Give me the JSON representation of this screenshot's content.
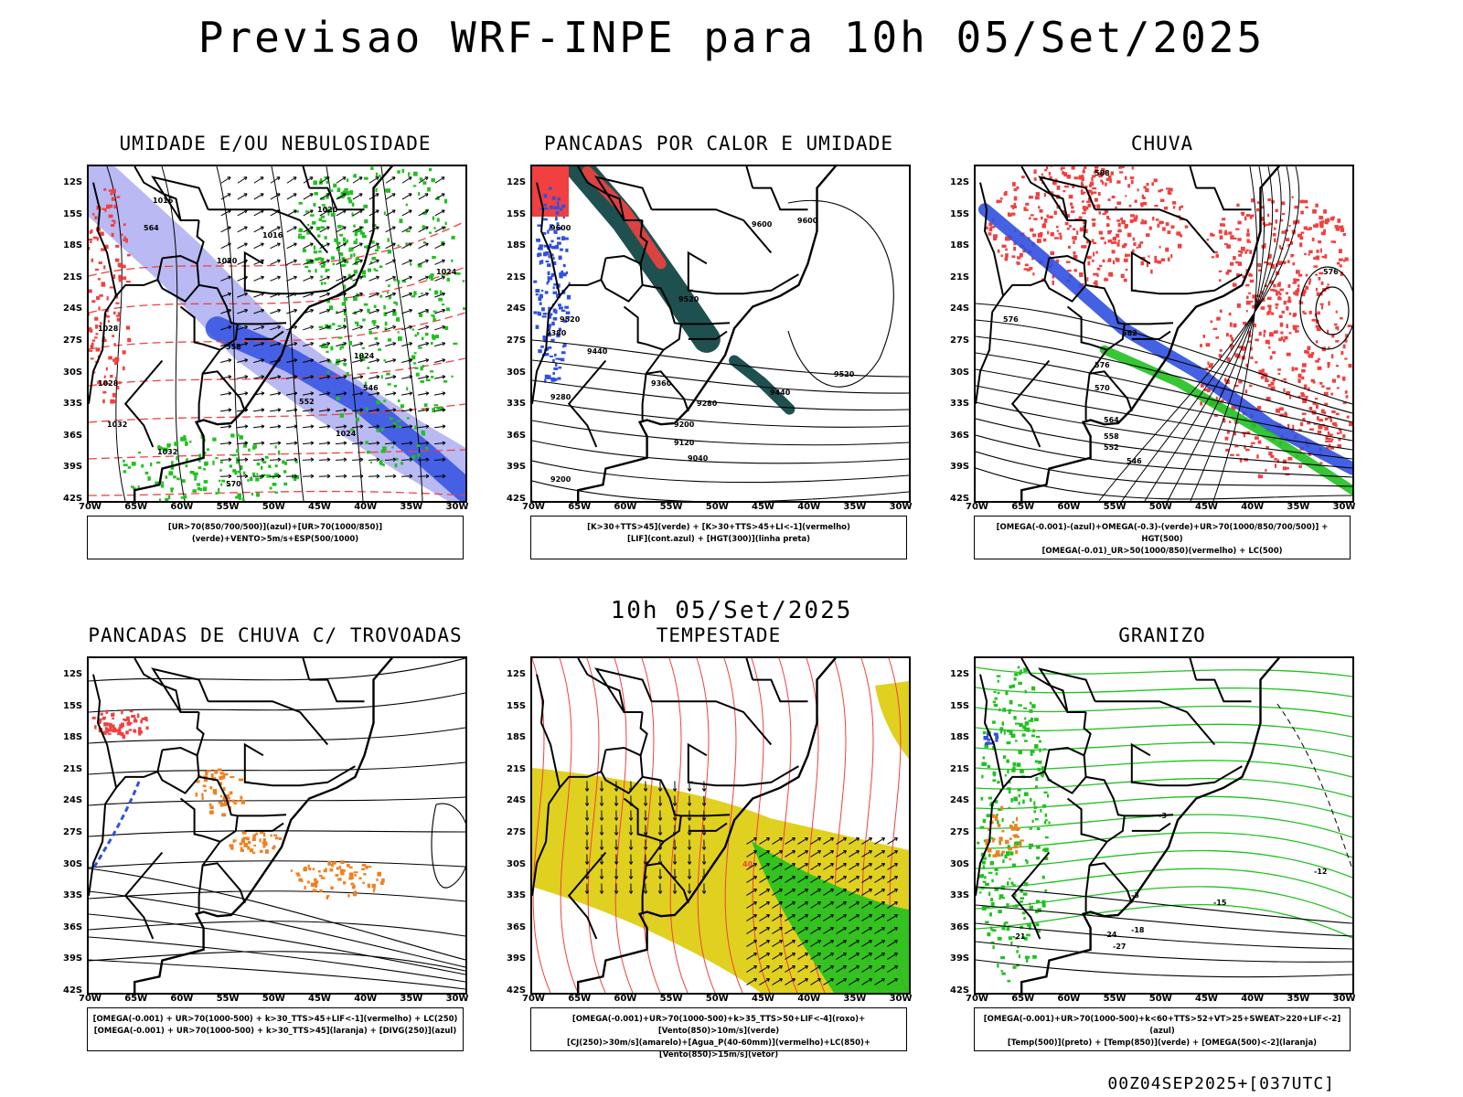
{
  "title": "Previsao WRF-INPE  para 10h 05/Set/2025",
  "mid_title": "10h 05/Set/2025",
  "footer": "00Z04SEP2025+[037UTC]",
  "lat_labels": [
    "12S",
    "15S",
    "18S",
    "21S",
    "24S",
    "27S",
    "30S",
    "33S",
    "36S",
    "39S",
    "42S"
  ],
  "lon_labels": [
    "70W",
    "65W",
    "60W",
    "55W",
    "50W",
    "45W",
    "40W",
    "35W",
    "30W"
  ],
  "colors": {
    "blue": "#3050e0",
    "light_blue": "#a8a8f0",
    "green": "#20c020",
    "red": "#f04040",
    "dark_teal": "#1f5050",
    "orange": "#f08020",
    "yellow": "#e0d020"
  },
  "panels": [
    {
      "title": "UMIDADE E/OU NEBULOSIDADE",
      "legend": [
        "[UR>70(850/700/500)](azul)+[UR>70(1000/850)](verde)+VENTO>5m/s+ESP(500/1000)"
      ],
      "contour_labels": [
        "1016",
        "1016",
        "1020",
        "1020",
        "1024",
        "1024",
        "1024",
        "1028",
        "1028",
        "1032",
        "1032",
        "570",
        "564",
        "558",
        "552",
        "546"
      ]
    },
    {
      "title": "PANCADAS POR CALOR E UMIDADE",
      "legend": [
        "[K>30+TTS>45](verde) + [K>30+TTS>45+LI<-1](vermelho)",
        "[LIF](cont.azul) + [HGT(300)](linha preta)"
      ],
      "contour_labels": [
        "9600",
        "9600",
        "9600",
        "9520",
        "9520",
        "9520",
        "9440",
        "9440",
        "9380",
        "9360",
        "9280",
        "9280",
        "9200",
        "9200",
        "9120",
        "9040"
      ]
    },
    {
      "title": "CHUVA",
      "legend": [
        "[OMEGA(-0.001)-(azul)+OMEGA(-0.3)-(verde)+UR>70(1000/850/700/500)] + HGT(500)",
        "[OMEGA(-0.01)_UR>50(1000/850)(vermelho) + LC(500)"
      ],
      "contour_labels": [
        "588",
        "582",
        "576",
        "576",
        "570",
        "564",
        "558",
        "552",
        "546",
        "576"
      ]
    },
    {
      "title": "PANCADAS DE CHUVA C/ TROVOADAS",
      "legend": [
        "[OMEGA(-0.001) + UR>70(1000-500) + k>30_TTS>45+LIF<-1](vermelho) + LC(250)",
        "[OMEGA(-0.001) + UR>70(1000-500) + k>30_TTS>45](laranja) + [DIVG(250)](azul)"
      ],
      "contour_labels": []
    },
    {
      "title": "TEMPESTADE",
      "legend": [
        "[OMEGA(-0.001)+UR>70(1000-500)+k>35_TTS>50+LIF<-4](roxo)+[Vento(850)>10m/s](verde)",
        "[CJ(250)>30m/s](amarelo)+[Agua_P(40-60mm)](vermelho)+LC(850)+[Vento(850)>15m/s](vetor)"
      ],
      "contour_labels": [
        "40"
      ]
    },
    {
      "title": "GRANIZO",
      "legend": [
        "[OMEGA(-0.001)+UR>70(1000-500)+k<60+TTS>52+VT>25+SWEAT>220+LIF<-2](azul)",
        "[Temp(500)](preto) + [Temp(850)](verde) + [OMEGA(500)<-2](laranja)"
      ],
      "contour_labels": [
        "-3",
        "-12",
        "-15",
        "-18",
        "-21",
        "-24",
        "-27",
        "-3"
      ]
    }
  ]
}
